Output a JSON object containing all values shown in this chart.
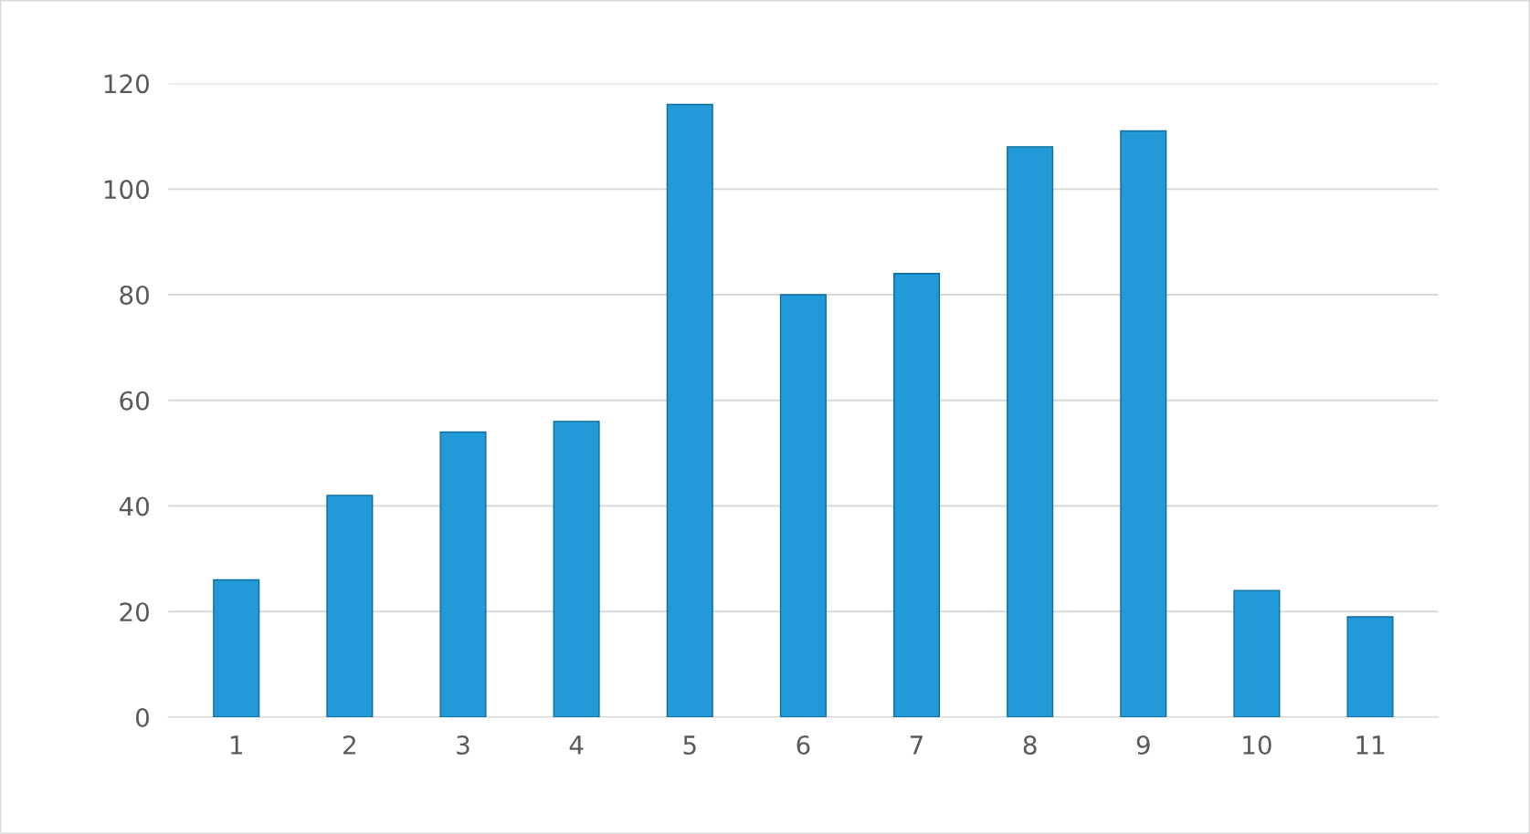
{
  "chart_data": {
    "type": "bar",
    "categories": [
      "1",
      "2",
      "3",
      "4",
      "5",
      "6",
      "7",
      "8",
      "9",
      "10",
      "11"
    ],
    "values": [
      26,
      42,
      54,
      56,
      116,
      80,
      84,
      108,
      111,
      24,
      19
    ],
    "color": "#229ad8",
    "ylim": [
      0,
      120
    ],
    "yticks": [
      0,
      20,
      40,
      60,
      80,
      100,
      120
    ],
    "grid": "y"
  }
}
